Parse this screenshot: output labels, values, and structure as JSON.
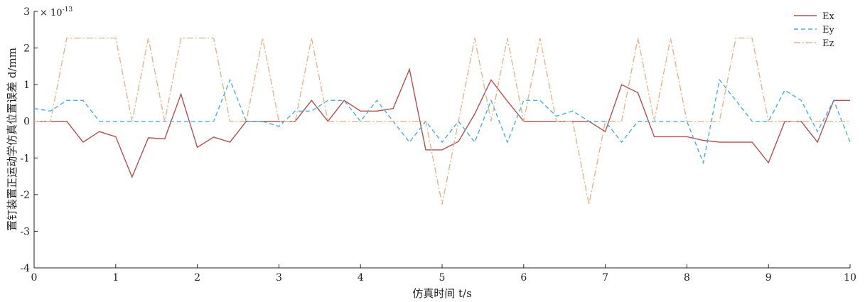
{
  "chart_data": {
    "type": "line",
    "xlabel": "仿真时间  t/s",
    "ylabel": "置钉装置正运动学仿真位置误差  d/mm",
    "y_multiplier": "× 10",
    "y_multiplier_exponent": "-13",
    "xlim": [
      0,
      10
    ],
    "ylim": [
      -4,
      3
    ],
    "xticks": [
      0,
      1,
      2,
      3,
      4,
      5,
      6,
      7,
      8,
      9,
      10
    ],
    "yticks": [
      -4,
      -3,
      -2,
      -1,
      0,
      1,
      2,
      3
    ],
    "grid": false,
    "legend_position": "top-right",
    "series": [
      {
        "name": "Ex",
        "color": "#b05050",
        "style": "solid",
        "x": [
          0,
          0.4,
          0.6,
          0.8,
          1.0,
          1.2,
          1.4,
          1.6,
          1.8,
          2.0,
          2.2,
          2.4,
          2.6,
          2.8,
          3.0,
          3.2,
          3.4,
          3.6,
          3.8,
          4.0,
          4.2,
          4.4,
          4.6,
          4.8,
          5.0,
          5.2,
          5.4,
          5.6,
          5.8,
          6.0,
          6.2,
          6.4,
          6.6,
          6.8,
          7.0,
          7.2,
          7.4,
          7.6,
          7.8,
          8.0,
          8.2,
          8.4,
          8.6,
          8.8,
          9.0,
          9.2,
          9.4,
          9.6,
          9.8,
          10.0
        ],
        "y": [
          0,
          0,
          -0.57,
          -0.28,
          -0.42,
          -1.52,
          -0.45,
          -0.48,
          0.74,
          -0.71,
          -0.43,
          -0.57,
          0,
          0,
          0,
          0,
          0.57,
          0,
          0.57,
          0.28,
          0.28,
          0.35,
          1.42,
          -0.78,
          -0.78,
          -0.55,
          0.2,
          1.13,
          0.55,
          0,
          0,
          0,
          0,
          0,
          -0.28,
          1.0,
          0.78,
          -0.42,
          -0.42,
          -0.42,
          -0.52,
          -0.57,
          -0.57,
          -0.57,
          -1.13,
          0,
          0,
          -0.57,
          0.57,
          0.57
        ]
      },
      {
        "name": "Ey",
        "color": "#4aaedb",
        "style": "dashed",
        "x": [
          0,
          0.2,
          0.4,
          0.6,
          0.8,
          1.0,
          1.2,
          1.4,
          1.6,
          1.8,
          2.0,
          2.2,
          2.4,
          2.6,
          2.8,
          3.0,
          3.2,
          3.4,
          3.6,
          3.8,
          4.0,
          4.2,
          4.4,
          4.6,
          4.8,
          5.0,
          5.2,
          5.4,
          5.6,
          5.8,
          6.0,
          6.2,
          6.4,
          6.6,
          6.8,
          7.0,
          7.2,
          7.4,
          7.6,
          7.8,
          8.0,
          8.2,
          8.4,
          8.6,
          8.8,
          9.0,
          9.2,
          9.4,
          9.6,
          9.8,
          10.0
        ],
        "y": [
          0.35,
          0.28,
          0.57,
          0.57,
          0,
          0,
          0,
          0,
          0,
          0,
          0,
          0,
          1.13,
          0,
          0,
          -0.14,
          0.28,
          0.28,
          0.57,
          0.57,
          0,
          0.57,
          0,
          -0.57,
          0,
          -0.57,
          0,
          -0.57,
          0.57,
          -0.57,
          0.57,
          0.57,
          0.14,
          0.28,
          0,
          0,
          -0.57,
          0,
          0,
          0,
          0,
          -1.13,
          1.13,
          0.57,
          0,
          0,
          0.85,
          0.57,
          -0.28,
          0.57,
          -0.57
        ]
      },
      {
        "name": "Ez",
        "color": "#e6b48c",
        "style": "dashdot",
        "x": [
          0,
          0.2,
          0.4,
          0.6,
          0.8,
          1.0,
          1.2,
          1.4,
          1.6,
          1.8,
          2.0,
          2.2,
          2.4,
          2.6,
          2.8,
          3.0,
          3.2,
          3.4,
          3.6,
          3.8,
          4.0,
          4.2,
          4.4,
          4.6,
          4.8,
          5.0,
          5.2,
          5.4,
          5.6,
          5.8,
          6.0,
          6.2,
          6.4,
          6.6,
          6.8,
          7.0,
          7.2,
          7.4,
          7.6,
          7.8,
          8.0,
          8.2,
          8.4,
          8.6,
          8.8,
          9.0,
          9.2,
          9.4,
          9.6,
          9.8,
          10.0
        ],
        "y": [
          0,
          0,
          2.27,
          2.27,
          2.27,
          2.27,
          0,
          2.27,
          0,
          2.27,
          2.27,
          2.27,
          0,
          0,
          2.27,
          0,
          0,
          2.27,
          0,
          0,
          0,
          0,
          0,
          0,
          0,
          -2.27,
          0,
          2.27,
          0,
          2.27,
          0,
          2.27,
          0,
          0,
          -2.27,
          0,
          0,
          2.27,
          0,
          2.27,
          0,
          0,
          0,
          2.27,
          2.27,
          0,
          0,
          0,
          0,
          0,
          0
        ]
      }
    ]
  }
}
